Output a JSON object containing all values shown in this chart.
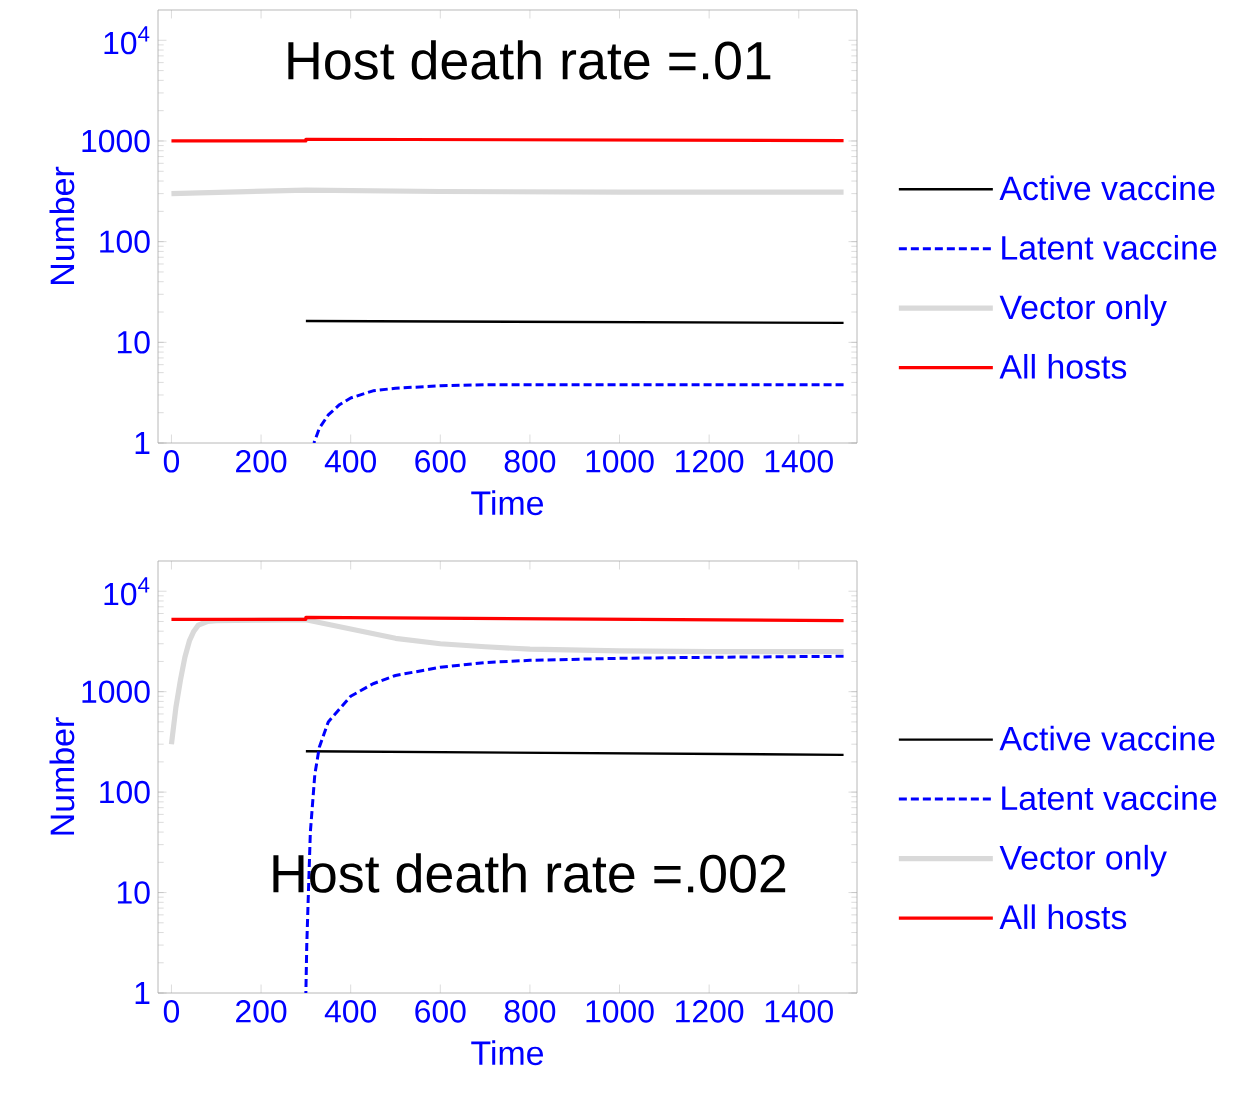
{
  "chart_data": [
    {
      "type": "line",
      "title": "Host death rate =.01",
      "xlabel": "Time",
      "ylabel": "Number",
      "log": true,
      "legend": "right",
      "xlim": [
        -30,
        1530
      ],
      "ylim": [
        1,
        20000
      ],
      "xticks": [
        0,
        200,
        400,
        600,
        800,
        1000,
        1200,
        1400
      ],
      "yticks": [
        1,
        10,
        100,
        1000,
        {
          "value": 10000,
          "label": "10$^{4}$"
        }
      ],
      "series": [
        {
          "name": "Active vaccine",
          "color": "#000000",
          "line_style": "solid",
          "x": [
            300,
            1500
          ],
          "values": [
            16.3,
            15.6
          ]
        },
        {
          "name": "Latent vaccine",
          "color": "#0000ff",
          "line_style": "dashed",
          "x": [
            318,
            330,
            350,
            375,
            400,
            450,
            500,
            600,
            700,
            800,
            1000,
            1500
          ],
          "values": [
            1,
            1.4,
            1.9,
            2.4,
            2.8,
            3.3,
            3.5,
            3.7,
            3.8,
            3.8,
            3.8,
            3.8
          ]
        },
        {
          "name": "Vector only",
          "color": "#d9d9d9",
          "line_style": "solid",
          "x": [
            0,
            300,
            600,
            1000,
            1500
          ],
          "values": [
            300,
            325,
            315,
            310,
            310
          ]
        },
        {
          "name": "All hosts",
          "color": "#ff0000",
          "line_style": "solid",
          "x": [
            0,
            300,
            300,
            1500
          ],
          "values": [
            1000,
            1000,
            1040,
            1010
          ]
        }
      ]
    },
    {
      "type": "line",
      "title": "Host death rate =.002",
      "xlabel": "Time",
      "ylabel": "Number",
      "log": true,
      "legend": "right",
      "xlim": [
        -30,
        1530
      ],
      "ylim": [
        1,
        20000
      ],
      "xticks": [
        0,
        200,
        400,
        600,
        800,
        1000,
        1200,
        1400
      ],
      "yticks": [
        1,
        10,
        100,
        1000,
        {
          "value": 10000,
          "label": "10$^{4}$"
        }
      ],
      "series": [
        {
          "name": "Active vaccine",
          "color": "#000000",
          "line_style": "solid",
          "x": [
            300,
            1500
          ],
          "values": [
            255,
            235
          ]
        },
        {
          "name": "Latent vaccine",
          "color": "#0000ff",
          "line_style": "dashed",
          "x": [
            300,
            302,
            305,
            310,
            320,
            330,
            350,
            400,
            450,
            500,
            600,
            700,
            800,
            1000,
            1200,
            1500
          ],
          "values": [
            1,
            3,
            8,
            40,
            150,
            280,
            500,
            900,
            1200,
            1450,
            1750,
            1950,
            2050,
            2150,
            2200,
            2250
          ]
        },
        {
          "name": "Vector only",
          "color": "#d9d9d9",
          "line_style": "solid",
          "x": [
            0,
            10,
            20,
            30,
            40,
            50,
            60,
            80,
            100,
            200,
            300,
            400,
            500,
            600,
            700,
            800,
            1000,
            1200,
            1500
          ],
          "values": [
            300,
            700,
            1300,
            2200,
            3200,
            4000,
            4600,
            5000,
            5100,
            5150,
            5200,
            4200,
            3400,
            3000,
            2800,
            2650,
            2550,
            2500,
            2500
          ]
        },
        {
          "name": "All hosts",
          "color": "#ff0000",
          "line_style": "solid",
          "x": [
            0,
            300,
            300,
            1500
          ],
          "values": [
            5250,
            5250,
            5500,
            5100
          ]
        }
      ]
    }
  ]
}
